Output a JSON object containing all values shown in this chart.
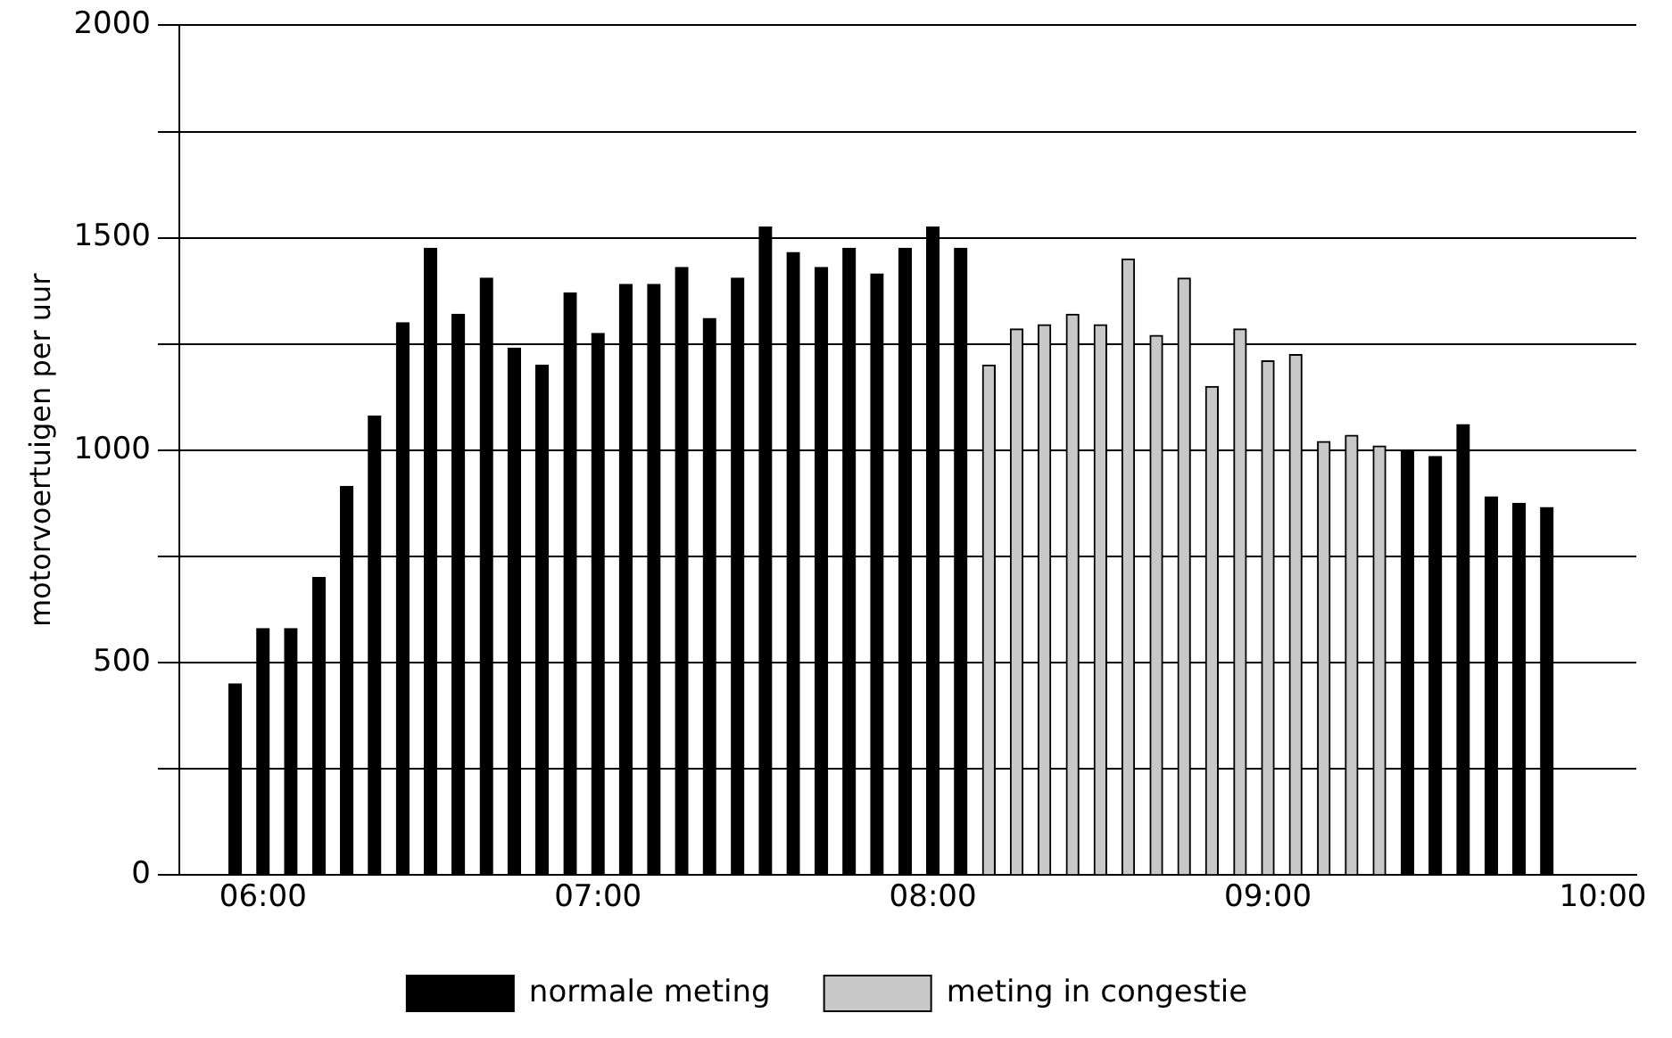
{
  "chart_data": {
    "type": "bar",
    "ylabel": "motorvoertuigen per uur",
    "series": [
      {
        "name": "normale meting",
        "color": "#000000",
        "x": [
          5.917,
          6,
          6.083,
          6.167,
          6.25,
          6.333,
          6.417,
          6.5,
          6.583,
          6.667,
          6.75,
          6.833,
          6.917,
          7,
          7.083,
          7.167,
          7.25,
          7.333,
          7.417,
          7.5,
          7.583,
          7.667,
          7.75,
          7.833,
          7.917,
          8,
          8.083,
          9.417,
          9.5,
          9.583,
          9.667,
          9.75,
          9.833
        ],
        "values": [
          450,
          580,
          580,
          700,
          915,
          1080,
          1300,
          1475,
          1320,
          1405,
          1240,
          1200,
          1370,
          1275,
          1390,
          1390,
          1430,
          1310,
          1405,
          1525,
          1465,
          1430,
          1475,
          1415,
          1475,
          1525,
          1475,
          1000,
          985,
          1060,
          890,
          875,
          865
        ]
      },
      {
        "name": "meting in congestie",
        "color": "#c8c8c8",
        "x": [
          8.167,
          8.25,
          8.333,
          8.417,
          8.5,
          8.583,
          8.667,
          8.75,
          8.833,
          8.917,
          9,
          9.083,
          9.167,
          9.25,
          9.333
        ],
        "values": [
          1200,
          1285,
          1295,
          1320,
          1295,
          1450,
          1270,
          1405,
          1150,
          1285,
          1210,
          1225,
          1020,
          1035,
          1010
        ]
      }
    ],
    "xlim": [
      5.75,
      10.1
    ],
    "xticks": [
      {
        "value": 6,
        "label": "06:00"
      },
      {
        "value": 7,
        "label": "07:00"
      },
      {
        "value": 8,
        "label": "08:00"
      },
      {
        "value": 9,
        "label": "09:00"
      },
      {
        "value": 10,
        "label": "10:00"
      }
    ],
    "ylim": [
      0,
      2000
    ],
    "yticks": [
      0,
      {
        "value": 250,
        "label": null
      },
      500,
      {
        "value": 750,
        "label": null
      },
      1000,
      {
        "value": 1250,
        "label": null
      },
      1500,
      {
        "value": 1750,
        "label": null
      },
      2000
    ],
    "grid": "y",
    "legend": "bottom"
  }
}
